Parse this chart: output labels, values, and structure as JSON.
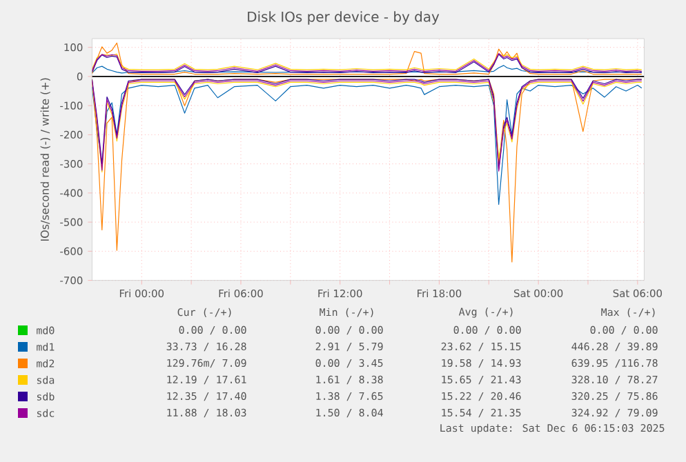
{
  "chart_data": {
    "type": "line",
    "title": "Disk IOs per device - by day",
    "ylabel": "IOs/second read (-) / write (+)",
    "x": [
      "2025-12-04T21:00",
      "2025-12-04T21:18",
      "2025-12-04T21:36",
      "2025-12-04T21:54",
      "2025-12-04T22:12",
      "2025-12-04T22:30",
      "2025-12-04T22:48",
      "2025-12-04T23:12",
      "2025-12-05T00:00",
      "2025-12-05T01:00",
      "2025-12-05T02:00",
      "2025-12-05T02:36",
      "2025-12-05T03:12",
      "2025-12-05T04:00",
      "2025-12-05T04:36",
      "2025-12-05T05:36",
      "2025-12-05T07:00",
      "2025-12-05T08:06",
      "2025-12-05T09:00",
      "2025-12-05T10:00",
      "2025-12-05T11:00",
      "2025-12-05T12:00",
      "2025-12-05T13:00",
      "2025-12-05T14:00",
      "2025-12-05T15:00",
      "2025-12-05T16:00",
      "2025-12-05T16:30",
      "2025-12-05T16:54",
      "2025-12-05T17:06",
      "2025-12-05T18:00",
      "2025-12-05T19:00",
      "2025-12-05T20:06",
      "2025-12-05T21:00",
      "2025-12-05T21:18",
      "2025-12-05T21:36",
      "2025-12-05T21:54",
      "2025-12-05T22:06",
      "2025-12-05T22:24",
      "2025-12-05T22:42",
      "2025-12-05T23:00",
      "2025-12-05T23:30",
      "2025-12-06T00:00",
      "2025-12-06T01:00",
      "2025-12-06T02:00",
      "2025-12-06T02:42",
      "2025-12-06T03:18",
      "2025-12-06T04:00",
      "2025-12-06T04:42",
      "2025-12-06T05:18",
      "2025-12-06T06:00",
      "2025-12-06T06:15"
    ],
    "series": [
      {
        "name": "md0",
        "color": "#00cc00",
        "values": [
          null,
          null,
          null,
          null,
          null,
          null,
          null,
          null,
          null,
          null,
          null,
          null,
          null,
          null,
          null,
          null,
          null,
          null,
          null,
          null,
          null,
          null,
          null,
          null,
          null,
          null,
          null,
          null,
          null,
          null,
          null,
          null,
          null,
          null,
          null,
          null,
          null,
          null,
          null,
          null,
          null,
          null,
          null,
          null,
          null,
          null,
          null,
          null,
          null,
          null,
          null
        ]
      },
      {
        "name": "md1",
        "color": "#0066b3",
        "values": [
          12,
          30,
          35,
          25,
          20,
          15,
          12,
          14,
          15,
          14,
          16,
          20,
          15,
          14,
          15,
          16,
          15,
          14,
          15,
          16,
          14,
          15,
          16,
          15,
          14,
          15,
          16,
          15,
          14,
          15,
          16,
          20,
          16,
          18,
          30,
          38,
          30,
          25,
          28,
          20,
          16,
          15,
          14,
          15,
          16,
          15,
          14,
          15,
          16,
          15,
          16
        ]
      },
      {
        "color": "#0066b3",
        "values": [
          -35,
          -185,
          -300,
          -120,
          -90,
          -200,
          -60,
          -40,
          -30,
          -35,
          -30,
          -126,
          -40,
          -30,
          -73,
          -35,
          -30,
          -84,
          -35,
          -30,
          -40,
          -30,
          -35,
          -30,
          -40,
          -30,
          -35,
          -40,
          -62,
          -35,
          -30,
          -35,
          -30,
          -100,
          -439,
          -250,
          -80,
          -200,
          -60,
          -40,
          -50,
          -30,
          -35,
          -30,
          -60,
          -40,
          -71,
          -35,
          -50,
          -30,
          -40
        ]
      },
      {
        "name": "md2",
        "color": "#ff8000",
        "values": [
          10,
          60,
          102,
          80,
          90,
          115,
          40,
          10,
          8,
          8,
          8,
          15,
          8,
          8,
          8,
          10,
          8,
          10,
          8,
          8,
          8,
          8,
          8,
          8,
          8,
          10,
          86,
          80,
          10,
          8,
          8,
          12,
          8,
          40,
          94,
          70,
          85,
          60,
          80,
          30,
          10,
          8,
          8,
          8,
          20,
          8,
          8,
          8,
          8,
          8,
          8
        ]
      },
      {
        "color": "#ff8000",
        "values": [
          -10,
          -200,
          -527,
          -160,
          -140,
          -597,
          -287,
          -20,
          -10,
          -10,
          -10,
          -101,
          -15,
          -10,
          -15,
          -10,
          -10,
          -20,
          -10,
          -10,
          -10,
          -10,
          -10,
          -10,
          -10,
          -10,
          -15,
          -10,
          -15,
          -10,
          -10,
          -15,
          -10,
          -60,
          -300,
          -150,
          -250,
          -637,
          -240,
          -60,
          -15,
          -10,
          -10,
          -10,
          -189,
          -15,
          -10,
          -10,
          -10,
          -10,
          -10
        ]
      },
      {
        "name": "sda",
        "color": "#ffcc00",
        "values": [
          25,
          65,
          75,
          75,
          72,
          77,
          35,
          25,
          23,
          23,
          25,
          44,
          25,
          23,
          25,
          35,
          23,
          45,
          25,
          23,
          25,
          23,
          27,
          23,
          25,
          23,
          30,
          25,
          23,
          27,
          23,
          60,
          25,
          50,
          78,
          70,
          75,
          65,
          70,
          40,
          25,
          23,
          25,
          23,
          35,
          25,
          23,
          27,
          23,
          25,
          23
        ]
      },
      {
        "color": "#ffcc00",
        "values": [
          -20,
          -160,
          -328,
          -90,
          -130,
          -222,
          -110,
          -25,
          -20,
          -20,
          -20,
          -78,
          -25,
          -20,
          -25,
          -20,
          -20,
          -35,
          -20,
          -20,
          -25,
          -20,
          -20,
          -20,
          -25,
          -20,
          -20,
          -25,
          -30,
          -20,
          -20,
          -25,
          -20,
          -90,
          -280,
          -190,
          -160,
          -225,
          -110,
          -45,
          -25,
          -20,
          -20,
          -20,
          -95,
          -25,
          -35,
          -20,
          -25,
          -20,
          -20
        ]
      },
      {
        "name": "sdb",
        "color": "#330099",
        "values": [
          15,
          55,
          74,
          65,
          70,
          67,
          25,
          15,
          13,
          13,
          15,
          34,
          15,
          13,
          15,
          25,
          13,
          35,
          15,
          13,
          15,
          13,
          17,
          13,
          15,
          13,
          20,
          15,
          13,
          17,
          13,
          50,
          15,
          40,
          76,
          60,
          65,
          55,
          60,
          30,
          15,
          13,
          15,
          13,
          25,
          15,
          13,
          17,
          13,
          15,
          13
        ]
      },
      {
        "color": "#330099",
        "values": [
          -10,
          -140,
          -300,
          -70,
          -110,
          -202,
          -90,
          -15,
          -10,
          -10,
          -10,
          -62,
          -15,
          -10,
          -15,
          -10,
          -10,
          -25,
          -10,
          -10,
          -15,
          -10,
          -10,
          -10,
          -15,
          -10,
          -10,
          -15,
          -20,
          -10,
          -10,
          -15,
          -10,
          -70,
          -320,
          -170,
          -140,
          -205,
          -90,
          -35,
          -15,
          -10,
          -10,
          -10,
          -75,
          -15,
          -25,
          -10,
          -15,
          -10,
          -10
        ]
      },
      {
        "name": "sdc",
        "color": "#990099",
        "values": [
          20,
          60,
          76,
          70,
          75,
          72,
          30,
          20,
          18,
          18,
          20,
          39,
          20,
          18,
          20,
          30,
          18,
          40,
          20,
          18,
          20,
          18,
          22,
          18,
          20,
          18,
          25,
          20,
          18,
          22,
          18,
          55,
          20,
          45,
          79,
          65,
          70,
          60,
          65,
          35,
          20,
          18,
          20,
          18,
          30,
          20,
          18,
          22,
          18,
          20,
          18
        ]
      },
      {
        "color": "#990099",
        "values": [
          -15,
          -150,
          -322,
          -80,
          -120,
          -212,
          -100,
          -20,
          -15,
          -15,
          -15,
          -70,
          -20,
          -15,
          -20,
          -15,
          -15,
          -30,
          -15,
          -15,
          -20,
          -15,
          -15,
          -15,
          -20,
          -15,
          -15,
          -20,
          -25,
          -15,
          -15,
          -20,
          -15,
          -80,
          -325,
          -180,
          -150,
          -215,
          -100,
          -40,
          -20,
          -15,
          -15,
          -15,
          -85,
          -20,
          -30,
          -15,
          -20,
          -15,
          -15
        ]
      }
    ],
    "xlim": [
      "2025-12-04T21:00",
      "2025-12-06T06:24"
    ],
    "ylim": [
      -700,
      130
    ],
    "xticks": [
      {
        "value": "2025-12-05T00:00",
        "label": "Fri 00:00"
      },
      {
        "value": "2025-12-05T03:00",
        "label": null
      },
      {
        "value": "2025-12-05T06:00",
        "label": "Fri 06:00"
      },
      {
        "value": "2025-12-05T09:00",
        "label": null
      },
      {
        "value": "2025-12-05T12:00",
        "label": "Fri 12:00"
      },
      {
        "value": "2025-12-05T15:00",
        "label": null
      },
      {
        "value": "2025-12-05T18:00",
        "label": "Fri 18:00"
      },
      {
        "value": "2025-12-05T21:00",
        "label": null
      },
      {
        "value": "2025-12-06T00:00",
        "label": "Sat 00:00"
      },
      {
        "value": "2025-12-06T03:00",
        "label": null
      },
      {
        "value": "2025-12-06T06:00",
        "label": "Sat 06:00"
      }
    ],
    "yticks": [
      -700,
      -600,
      -500,
      -400,
      -300,
      -200,
      -100,
      0,
      100
    ],
    "ref_lines": [
      {
        "axis": "y",
        "value": 0,
        "color": "#000000"
      }
    ],
    "grid": true,
    "legend": "bottom",
    "annotations": [
      "Cur (-/+)",
      "Min (-/+)",
      "Avg (-/+)",
      "Max (-/+)",
      "0.00 / 0.00",
      "0.00 / 0.00",
      "0.00 / 0.00",
      "0.00 / 0.00",
      "33.73 / 16.28",
      "2.91 / 5.79",
      "23.62 / 15.15",
      "446.28 / 39.89",
      "129.76m/ 7.09",
      "0.00 / 3.45",
      "19.58 / 14.93",
      "639.95 /116.78",
      "12.19 / 17.61",
      "1.61 / 8.38",
      "15.65 / 21.43",
      "328.10 / 78.27",
      "12.35 / 17.40",
      "1.38 / 7.65",
      "15.22 / 20.46",
      "320.25 / 75.86",
      "11.88 / 18.03",
      "1.50 / 8.04",
      "15.54 / 21.35",
      "324.92 / 79.09",
      "Last update: Sat Dec 6 06:15:03 2025"
    ]
  }
}
